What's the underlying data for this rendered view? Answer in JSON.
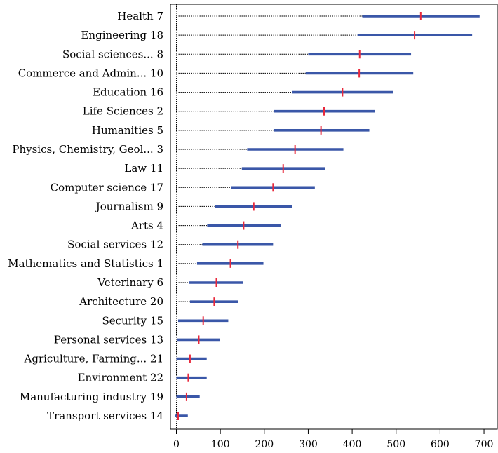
{
  "chart_data": {
    "type": "interval",
    "title": "",
    "xlabel": "",
    "ylabel": "",
    "xlim": [
      -10,
      715
    ],
    "x_ticks": [
      0,
      100,
      200,
      300,
      400,
      500,
      600,
      700
    ],
    "x_tick_labels": [
      "0",
      "100",
      "200",
      "300",
      "400",
      "500",
      "600",
      "700"
    ],
    "zero_line": 0,
    "colors": {
      "interval": "#3a57a8",
      "point": "#e8283c",
      "guide": "#000000",
      "frame": "#000000"
    },
    "rows": [
      {
        "label": "Health",
        "num": "7",
        "low": 423,
        "high": 690,
        "point": 556
      },
      {
        "label": "Engineering",
        "num": "18",
        "low": 412,
        "high": 673,
        "point": 542
      },
      {
        "label": "Social sciences...",
        "num": "8",
        "low": 300,
        "high": 534,
        "point": 417
      },
      {
        "label": "Commerce and Admin...",
        "num": "10",
        "low": 294,
        "high": 539,
        "point": 416
      },
      {
        "label": "Education",
        "num": "16",
        "low": 263,
        "high": 493,
        "point": 378
      },
      {
        "label": "Life Sciences",
        "num": "2",
        "low": 222,
        "high": 451,
        "point": 336
      },
      {
        "label": "Humanities",
        "num": "5",
        "low": 221,
        "high": 439,
        "point": 329
      },
      {
        "label": "Physics, Chemistry, Geol...",
        "num": "3",
        "low": 161,
        "high": 380,
        "point": 270
      },
      {
        "label": "Law",
        "num": "11",
        "low": 149,
        "high": 338,
        "point": 243
      },
      {
        "label": "Computer science",
        "num": "17",
        "low": 125,
        "high": 315,
        "point": 220
      },
      {
        "label": "Journalism",
        "num": "9",
        "low": 88,
        "high": 263,
        "point": 176
      },
      {
        "label": "Arts",
        "num": "4",
        "low": 70,
        "high": 237,
        "point": 153
      },
      {
        "label": "Social services",
        "num": "12",
        "low": 59,
        "high": 220,
        "point": 140
      },
      {
        "label": "Mathematics and Statistics",
        "num": "1",
        "low": 47,
        "high": 198,
        "point": 123
      },
      {
        "label": "Veterinary",
        "num": "6",
        "low": 28,
        "high": 152,
        "point": 91
      },
      {
        "label": "Architecture",
        "num": "20",
        "low": 31,
        "high": 141,
        "point": 86
      },
      {
        "label": "Security",
        "num": "15",
        "low": 4,
        "high": 118,
        "point": 61
      },
      {
        "label": "Personal services",
        "num": "13",
        "low": 2,
        "high": 99,
        "point": 51
      },
      {
        "label": "Agriculture, Farming...",
        "num": "21",
        "low": 0,
        "high": 69,
        "point": 31
      },
      {
        "label": "Environment",
        "num": "22",
        "low": 0,
        "high": 69,
        "point": 27
      },
      {
        "label": "Manufacturing industry",
        "num": "19",
        "low": 0,
        "high": 53,
        "point": 23
      },
      {
        "label": "Transport services",
        "num": "14",
        "low": -3,
        "high": 26,
        "point": 4
      }
    ]
  }
}
